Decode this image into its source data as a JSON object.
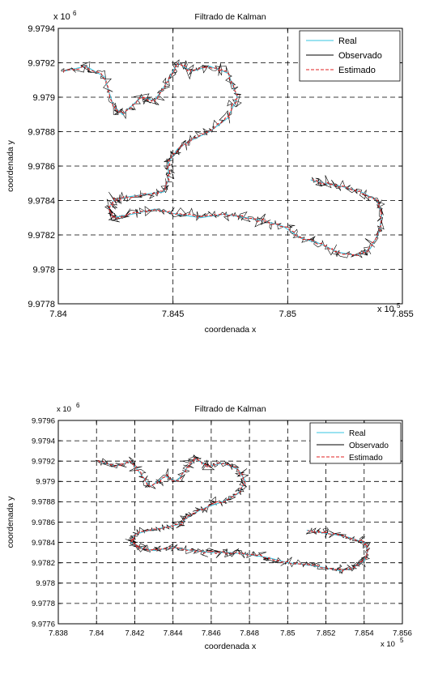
{
  "chart_data": [
    {
      "type": "line",
      "title": "Filtrado de Kalman",
      "xlabel": "coordenada x",
      "ylabel": "coordenada y",
      "x_exponent": "x 10",
      "x_exponent_power": "5",
      "y_exponent": "x 10",
      "y_exponent_power": "6",
      "xlim": [
        7.84,
        7.855
      ],
      "ylim": [
        9.9778,
        9.9794
      ],
      "xticks": [
        7.84,
        7.845,
        7.85,
        7.855
      ],
      "xtick_labels": [
        "7.84",
        "7.845",
        "7.85",
        "7.855"
      ],
      "yticks": [
        9.9778,
        9.978,
        9.9782,
        9.9784,
        9.9786,
        9.9788,
        9.979,
        9.9792,
        9.9794
      ],
      "ytick_labels": [
        "9.9778",
        "9.978",
        "9.9782",
        "9.9784",
        "9.9786",
        "9.9788",
        "9.979",
        "9.9792",
        "9.9794"
      ],
      "grid": true,
      "legend_position": "top-right",
      "series": [
        {
          "name": "Real",
          "color": "#35c4e0"
        },
        {
          "name": "Observado",
          "color": "#000000"
        },
        {
          "name": "Estimado",
          "color": "#e02020"
        }
      ],
      "path": [
        [
          7.8402,
          9.97915
        ],
        [
          7.8412,
          9.97918
        ],
        [
          7.842,
          9.97912
        ],
        [
          7.8424,
          9.97895
        ],
        [
          7.8428,
          9.9789
        ],
        [
          7.8436,
          9.979
        ],
        [
          7.8442,
          9.97898
        ],
        [
          7.8448,
          9.9791
        ],
        [
          7.8452,
          9.9792
        ],
        [
          7.8458,
          9.97915
        ],
        [
          7.8466,
          9.97918
        ],
        [
          7.8474,
          9.97914
        ],
        [
          7.8478,
          9.979
        ],
        [
          7.8474,
          9.97888
        ],
        [
          7.8466,
          9.9788
        ],
        [
          7.8458,
          9.97875
        ],
        [
          7.8452,
          9.9787
        ],
        [
          7.8448,
          9.97862
        ],
        [
          7.8448,
          9.97852
        ],
        [
          7.8446,
          9.97845
        ],
        [
          7.844,
          9.97844
        ],
        [
          7.843,
          9.97842
        ],
        [
          7.8424,
          9.9784
        ],
        [
          7.8422,
          9.97835
        ],
        [
          7.8424,
          9.9783
        ],
        [
          7.8432,
          9.97832
        ],
        [
          7.8442,
          9.97835
        ],
        [
          7.8452,
          9.97832
        ],
        [
          7.8462,
          9.9783
        ],
        [
          7.8472,
          9.97832
        ],
        [
          7.8482,
          9.9783
        ],
        [
          7.849,
          9.97828
        ],
        [
          7.8498,
          9.97825
        ],
        [
          7.8506,
          9.97818
        ],
        [
          7.8514,
          9.97815
        ],
        [
          7.8522,
          9.9781
        ],
        [
          7.853,
          9.97808
        ],
        [
          7.8536,
          9.97812
        ],
        [
          7.854,
          9.97822
        ],
        [
          7.8541,
          9.97832
        ],
        [
          7.8539,
          9.9784
        ],
        [
          7.8532,
          9.97845
        ],
        [
          7.8524,
          9.97848
        ],
        [
          7.8516,
          9.9785
        ],
        [
          7.851,
          9.97852
        ]
      ]
    },
    {
      "type": "line",
      "title": "Filtrado de Kalman",
      "xlabel": "coordenada x",
      "ylabel": "coordenada y",
      "x_exponent": "x 10",
      "x_exponent_power": "5",
      "y_exponent": "x 10",
      "y_exponent_power": "6",
      "xlim": [
        7.838,
        7.856
      ],
      "ylim": [
        9.9776,
        9.9796
      ],
      "xticks": [
        7.838,
        7.84,
        7.842,
        7.844,
        7.846,
        7.848,
        7.85,
        7.852,
        7.854,
        7.856
      ],
      "xtick_labels": [
        "7.838",
        "7.84",
        "7.842",
        "7.844",
        "7.846",
        "7.848",
        "7.85",
        "7.852",
        "7.854",
        "7.856"
      ],
      "yticks": [
        9.9776,
        9.9778,
        9.978,
        9.9782,
        9.9784,
        9.9786,
        9.9788,
        9.979,
        9.9792,
        9.9794,
        9.9796
      ],
      "ytick_labels": [
        "9.9776",
        "9.9778",
        "9.978",
        "9.9782",
        "9.9784",
        "9.9786",
        "9.9788",
        "9.979",
        "9.9792",
        "9.9794",
        "9.9796"
      ],
      "grid": true,
      "legend_position": "top-right",
      "series": [
        {
          "name": "Real",
          "color": "#35c4e0"
        },
        {
          "name": "Observado",
          "color": "#000000"
        },
        {
          "name": "Estimado",
          "color": "#e02020"
        }
      ],
      "path": [
        [
          7.8401,
          9.9792
        ],
        [
          7.841,
          9.97915
        ],
        [
          7.8418,
          9.9792
        ],
        [
          7.8424,
          9.97905
        ],
        [
          7.8428,
          9.97895
        ],
        [
          7.8436,
          9.97905
        ],
        [
          7.8442,
          9.979
        ],
        [
          7.8448,
          9.97915
        ],
        [
          7.8452,
          9.97922
        ],
        [
          7.8458,
          9.97915
        ],
        [
          7.8466,
          9.97918
        ],
        [
          7.8474,
          9.97912
        ],
        [
          7.8478,
          9.979
        ],
        [
          7.8474,
          9.97888
        ],
        [
          7.8466,
          9.9788
        ],
        [
          7.8458,
          9.97875
        ],
        [
          7.845,
          9.97868
        ],
        [
          7.8446,
          9.97862
        ],
        [
          7.8444,
          9.97858
        ],
        [
          7.8436,
          9.97855
        ],
        [
          7.8428,
          9.97852
        ],
        [
          7.842,
          9.97848
        ],
        [
          7.8418,
          9.9784
        ],
        [
          7.8422,
          9.97835
        ],
        [
          7.843,
          9.97832
        ],
        [
          7.844,
          9.97835
        ],
        [
          7.845,
          9.97832
        ],
        [
          7.846,
          9.9783
        ],
        [
          7.847,
          9.9783
        ],
        [
          7.848,
          9.97828
        ],
        [
          7.849,
          9.97825
        ],
        [
          7.85,
          9.9782
        ],
        [
          7.851,
          9.97818
        ],
        [
          7.852,
          9.97815
        ],
        [
          7.8528,
          9.97812
        ],
        [
          7.8534,
          9.97815
        ],
        [
          7.854,
          9.97822
        ],
        [
          7.8542,
          9.97832
        ],
        [
          7.854,
          9.9784
        ],
        [
          7.8532,
          9.97845
        ],
        [
          7.8524,
          9.97848
        ],
        [
          7.8516,
          9.9785
        ],
        [
          7.851,
          9.97852
        ]
      ]
    }
  ]
}
